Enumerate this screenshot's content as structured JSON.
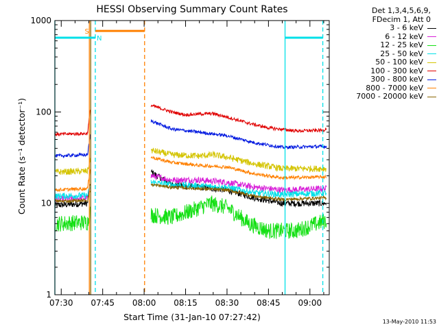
{
  "chart_data": {
    "type": "line",
    "title": "HESSI Observing Summary Count Rates",
    "xlabel": "Start Time (31-Jan-10 07:27:42)",
    "ylabel": "Count Rate (s⁻¹ detector⁻¹)",
    "y_scale": "log",
    "ylim": [
      1,
      1000
    ],
    "y_ticks": [
      {
        "v": 1,
        "label": "1"
      },
      {
        "v": 10,
        "label": "10"
      },
      {
        "v": 100,
        "label": "100"
      },
      {
        "v": 1000,
        "label": "1000"
      }
    ],
    "x_time_range": [
      "07:27:42",
      "09:07:00"
    ],
    "x_ticks": [
      "07:30",
      "07:45",
      "08:00",
      "08:15",
      "08:30",
      "08:45",
      "09:00"
    ],
    "legend": {
      "header": [
        "Det 1,3,4,5,6,9,",
        "FDecim 1, Att 0"
      ],
      "placement": "right"
    },
    "series": [
      {
        "name": "3 - 6 keV",
        "color": "#000000",
        "points": [
          [
            "07:27:42",
            9.5
          ],
          [
            "07:39:30",
            10
          ],
          [
            "07:40:30",
            17
          ],
          [
            "08:02:30",
            22
          ],
          [
            "08:10",
            16
          ],
          [
            "08:20",
            15
          ],
          [
            "08:30",
            14
          ],
          [
            "08:40",
            11.5
          ],
          [
            "08:50",
            10
          ],
          [
            "09:06",
            10
          ]
        ]
      },
      {
        "name": "6 - 12 keV",
        "color": "#d81fd8",
        "points": [
          [
            "07:27:42",
            11
          ],
          [
            "07:39:30",
            11.5
          ],
          [
            "07:40:30",
            16
          ],
          [
            "08:02:30",
            20
          ],
          [
            "08:10",
            18
          ],
          [
            "08:20",
            18
          ],
          [
            "08:30",
            17
          ],
          [
            "08:40",
            15
          ],
          [
            "08:50",
            14
          ],
          [
            "09:06",
            14.5
          ]
        ]
      },
      {
        "name": "12 - 25 keV",
        "color": "#14e014",
        "points": [
          [
            "07:27:42",
            6
          ],
          [
            "07:39:30",
            6.2
          ],
          [
            "07:40:30",
            8
          ],
          [
            "08:02:30",
            7.5
          ],
          [
            "08:10",
            7
          ],
          [
            "08:18",
            8.5
          ],
          [
            "08:24",
            10
          ],
          [
            "08:30",
            9
          ],
          [
            "08:38",
            6
          ],
          [
            "08:45",
            5
          ],
          [
            "08:55",
            5
          ],
          [
            "09:06",
            6.5
          ]
        ]
      },
      {
        "name": "25 - 50 keV",
        "color": "#00e0e8",
        "points": [
          [
            "07:27:42",
            12
          ],
          [
            "07:39:30",
            12.2
          ],
          [
            "07:40:30",
            15
          ],
          [
            "08:02:30",
            17
          ],
          [
            "08:10",
            16
          ],
          [
            "08:20",
            15.5
          ],
          [
            "08:30",
            15
          ],
          [
            "08:40",
            13
          ],
          [
            "08:50",
            12.5
          ],
          [
            "09:06",
            13
          ]
        ]
      },
      {
        "name": "50 - 100 keV",
        "color": "#d4c400",
        "points": [
          [
            "07:27:42",
            22
          ],
          [
            "07:39:30",
            22.5
          ],
          [
            "07:40:30",
            30
          ],
          [
            "08:02:30",
            38
          ],
          [
            "08:10",
            34
          ],
          [
            "08:20",
            33
          ],
          [
            "08:25",
            34
          ],
          [
            "08:30",
            32
          ],
          [
            "08:40",
            27
          ],
          [
            "08:50",
            24
          ],
          [
            "09:06",
            24
          ]
        ]
      },
      {
        "name": "100 - 300 keV",
        "color": "#e00000",
        "points": [
          [
            "07:27:42",
            57
          ],
          [
            "07:39:30",
            58
          ],
          [
            "07:40:30",
            105
          ],
          [
            "08:02:30",
            118
          ],
          [
            "08:10",
            100
          ],
          [
            "08:15",
            93
          ],
          [
            "08:20",
            95
          ],
          [
            "08:25",
            96
          ],
          [
            "08:30",
            88
          ],
          [
            "08:38",
            75
          ],
          [
            "08:45",
            67
          ],
          [
            "08:55",
            62
          ],
          [
            "09:05",
            63
          ],
          [
            "09:06",
            67
          ]
        ]
      },
      {
        "name": "300 - 800 keV",
        "color": "#0018e0",
        "points": [
          [
            "07:27:42",
            33
          ],
          [
            "07:39:30",
            34
          ],
          [
            "07:40:30",
            55
          ],
          [
            "08:02:30",
            80
          ],
          [
            "08:10",
            65
          ],
          [
            "08:20",
            60
          ],
          [
            "08:30",
            55
          ],
          [
            "08:40",
            46
          ],
          [
            "08:50",
            41
          ],
          [
            "09:06",
            42
          ]
        ]
      },
      {
        "name": "800 - 7000 keV",
        "color": "#ff8000",
        "points": [
          [
            "07:27:42",
            14
          ],
          [
            "07:39:30",
            14.5
          ],
          [
            "07:40:30",
            24
          ],
          [
            "08:02:30",
            32
          ],
          [
            "08:10",
            28
          ],
          [
            "08:20",
            26
          ],
          [
            "08:30",
            25
          ],
          [
            "08:40",
            21
          ],
          [
            "08:50",
            19
          ],
          [
            "09:06",
            19.5
          ]
        ]
      },
      {
        "name": "7000 - 20000 keV",
        "color": "#8a6400",
        "points": [
          [
            "07:27:42",
            10.5
          ],
          [
            "07:39:30",
            10.8
          ],
          [
            "07:40:30",
            14
          ],
          [
            "08:02:30",
            16
          ],
          [
            "08:10",
            15
          ],
          [
            "08:20",
            14.5
          ],
          [
            "08:30",
            14
          ],
          [
            "08:40",
            12
          ],
          [
            "08:50",
            11
          ],
          [
            "09:06",
            11.5
          ]
        ]
      }
    ],
    "data_gap": [
      "07:40:30",
      "08:02:30"
    ],
    "markers": [
      {
        "time": "07:27:42",
        "color": "#00e0e8",
        "style": "solid"
      },
      {
        "time": "07:40:10",
        "color": "#ff8000",
        "style": "solid"
      },
      {
        "time": "07:40:40",
        "color": "#8a6400",
        "style": "solid"
      },
      {
        "time": "07:42:20",
        "color": "#00e0e8",
        "style": "dashed"
      },
      {
        "time": "08:00:10",
        "color": "#ff8000",
        "style": "dashed"
      },
      {
        "time": "08:51:00",
        "color": "#00e0e8",
        "style": "solid"
      },
      {
        "time": "09:04:40",
        "color": "#00e0e8",
        "style": "dashed"
      }
    ],
    "flag_bars": [
      {
        "label": "N",
        "color": "#00e0e8",
        "ranges": [
          [
            "07:27:42",
            "07:42:20"
          ],
          [
            "08:51:00",
            "09:04:40"
          ]
        ],
        "label_at": "07:42:50",
        "level": 650
      },
      {
        "label": "S",
        "color": "#ff8000",
        "ranges": [
          [
            "07:42:20",
            "08:00:10"
          ]
        ],
        "label_at": "07:38:30",
        "level": 770
      }
    ]
  },
  "timestamp": "13-May-2010 11:53"
}
